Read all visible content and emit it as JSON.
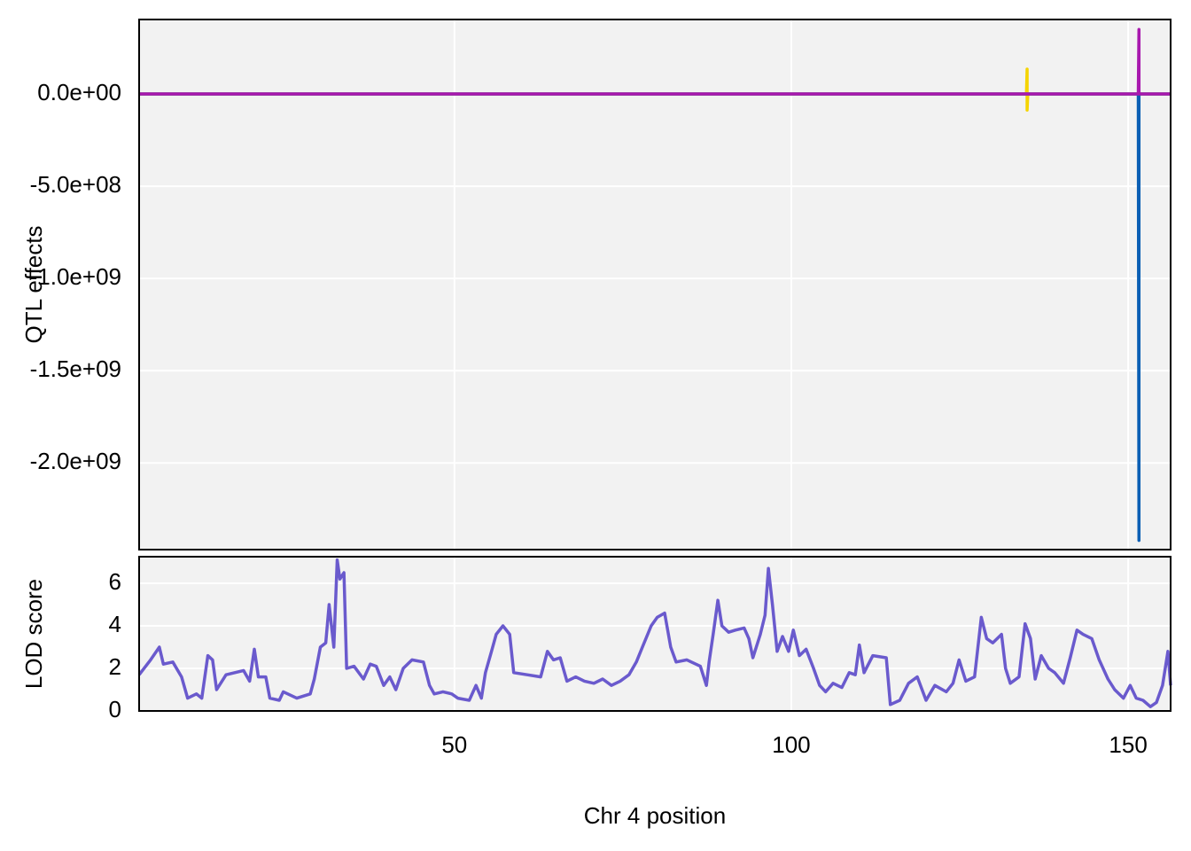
{
  "chart_data": [
    {
      "type": "line",
      "y_label": "QTL effects",
      "x": [
        3.2,
        134.9,
        135.0,
        135.0,
        135.1,
        151.5,
        151.6,
        151.6,
        151.7,
        156.3
      ],
      "series": [
        {
          "name": "yellow",
          "color": "#f5d400",
          "values": [
            0,
            0,
            135000000,
            -87000000,
            0,
            0,
            0,
            0,
            0,
            0
          ]
        },
        {
          "name": "blue",
          "color": "#0a5fb4",
          "values": [
            0,
            0,
            0,
            0,
            0,
            0,
            -2420000000,
            0,
            0,
            0
          ]
        },
        {
          "name": "purple",
          "color": "#a818ae",
          "values": [
            0,
            0,
            0,
            0,
            0,
            0,
            350000000,
            0,
            0,
            0
          ]
        }
      ],
      "xlim": [
        3.2,
        156.3
      ],
      "ylim": [
        -2470000000,
        404000000
      ],
      "yticks": [
        {
          "value": 0,
          "label": "0.0e+00"
        },
        {
          "value": -500000000,
          "label": "-5.0e+08"
        },
        {
          "value": -1000000000,
          "label": "-1.0e+09"
        },
        {
          "value": -1500000000,
          "label": "-1.5e+09"
        },
        {
          "value": -2000000000,
          "label": "-2.0e+09"
        }
      ],
      "grid": true
    },
    {
      "type": "line",
      "y_label": "LOD score",
      "x_label": "Chr 4 position",
      "color": "#6a5acd",
      "x": [
        3.2,
        4.9,
        6.2,
        6.8,
        8.2,
        9.5,
        10.4,
        11.7,
        12.5,
        13.4,
        14.1,
        14.7,
        16.1,
        18.7,
        19.6,
        20.3,
        20.9,
        22.0,
        22.6,
        24.0,
        24.6,
        26.6,
        28.6,
        29.2,
        30.1,
        30.9,
        31.4,
        32.1,
        32.6,
        33.0,
        33.6,
        34.0,
        35.1,
        36.5,
        37.5,
        38.4,
        39.5,
        40.4,
        41.3,
        42.4,
        43.7,
        45.4,
        46.3,
        47.0,
        48.3,
        49.6,
        50.5,
        52.2,
        53.2,
        54.0,
        54.6,
        55.5,
        56.2,
        57.2,
        58.2,
        58.8,
        60.8,
        62.8,
        63.8,
        64.7,
        65.7,
        66.7,
        68.0,
        69.3,
        70.7,
        72.0,
        73.3,
        74.6,
        75.9,
        77.0,
        77.9,
        79.2,
        80.1,
        81.2,
        82.1,
        82.9,
        84.5,
        86.5,
        87.4,
        87.8,
        88.4,
        89.1,
        89.7,
        90.7,
        91.7,
        93.0,
        93.7,
        94.3,
        95.4,
        96.1,
        96.6,
        97.2,
        97.9,
        98.7,
        99.6,
        100.3,
        101.2,
        102.2,
        103.3,
        104.2,
        105.1,
        106.2,
        107.5,
        108.6,
        109.5,
        110.1,
        110.8,
        112.1,
        114.1,
        114.7,
        116.1,
        117.4,
        118.7,
        120.0,
        121.3,
        123.0,
        124.0,
        124.9,
        125.9,
        127.2,
        128.2,
        129.0,
        129.9,
        131.2,
        131.8,
        132.5,
        133.8,
        134.7,
        135.5,
        136.2,
        137.1,
        138.2,
        139.1,
        140.4,
        141.4,
        142.4,
        143.3,
        144.6,
        145.7,
        147.0,
        148.0,
        149.3,
        150.3,
        151.2,
        152.2,
        153.3,
        154.2,
        155.1,
        155.9,
        156.3
      ],
      "values": [
        1.7,
        2.4,
        3.0,
        2.2,
        2.3,
        1.6,
        0.6,
        0.8,
        0.6,
        2.6,
        2.4,
        1.0,
        1.7,
        1.9,
        1.4,
        2.9,
        1.6,
        1.6,
        0.6,
        0.5,
        0.9,
        0.6,
        0.8,
        1.5,
        3.0,
        3.2,
        5.0,
        3.0,
        7.1,
        6.2,
        6.5,
        2.0,
        2.1,
        1.5,
        2.2,
        2.1,
        1.2,
        1.6,
        1.0,
        2.0,
        2.4,
        2.3,
        1.2,
        0.8,
        0.9,
        0.8,
        0.6,
        0.5,
        1.2,
        0.6,
        1.8,
        2.8,
        3.6,
        4.0,
        3.6,
        1.8,
        1.7,
        1.6,
        2.8,
        2.4,
        2.5,
        1.4,
        1.6,
        1.4,
        1.3,
        1.5,
        1.2,
        1.4,
        1.7,
        2.3,
        3.0,
        4.0,
        4.4,
        4.6,
        3.0,
        2.3,
        2.4,
        2.1,
        1.2,
        2.3,
        3.6,
        5.2,
        4.0,
        3.7,
        3.8,
        3.9,
        3.4,
        2.5,
        3.6,
        4.5,
        6.7,
        5.0,
        2.8,
        3.5,
        2.8,
        3.8,
        2.6,
        2.9,
        2.0,
        1.2,
        0.9,
        1.3,
        1.1,
        1.8,
        1.7,
        3.1,
        1.8,
        2.6,
        2.5,
        0.3,
        0.5,
        1.3,
        1.6,
        0.5,
        1.2,
        0.9,
        1.3,
        2.4,
        1.4,
        1.6,
        4.4,
        3.4,
        3.2,
        3.6,
        2.0,
        1.3,
        1.6,
        4.1,
        3.4,
        1.5,
        2.6,
        2.0,
        1.8,
        1.3,
        2.5,
        3.8,
        3.6,
        3.4,
        2.4,
        1.5,
        1.0,
        0.6,
        1.2,
        0.6,
        0.5,
        0.2,
        0.4,
        1.2,
        2.8,
        1.2
      ],
      "xlim": [
        3.2,
        156.3
      ],
      "xticks": [
        50,
        100,
        150
      ],
      "ylim": [
        0,
        7.25
      ],
      "yticks": [
        0,
        2,
        4,
        6
      ],
      "grid": true
    }
  ]
}
